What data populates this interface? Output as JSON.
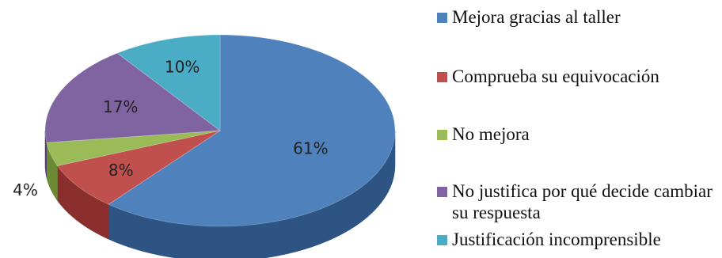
{
  "chart_data": {
    "type": "pie",
    "title": "",
    "three_d": true,
    "start_angle_deg": 90,
    "direction": "clockwise",
    "legend_position": "right",
    "slices": [
      {
        "label": "Mejora gracias al taller",
        "value": 61,
        "data_label": "61%",
        "color": "#4F81BD",
        "side_color": "#2D5483"
      },
      {
        "label": "Comprueba su equivocación",
        "value": 8,
        "data_label": "8%",
        "color": "#C0504D",
        "side_color": "#8A2F2D"
      },
      {
        "label": "No mejora",
        "value": 4,
        "data_label": "4%",
        "color": "#9BBB59",
        "side_color": "#6C8A33"
      },
      {
        "label": "No justifica por qué decide cambiar su respuesta",
        "value": 17,
        "data_label": "17%",
        "color": "#8064A2",
        "side_color": "#573F75"
      },
      {
        "label": "Justificación incomprensible",
        "value": 10,
        "data_label": "10%",
        "color": "#4BACC6",
        "side_color": "#2A7C92"
      }
    ]
  },
  "legend": {
    "items": [
      {
        "text": "Mejora gracias al taller",
        "color": "#4F81BD"
      },
      {
        "text": "Comprueba su equivocación",
        "color": "#C0504D"
      },
      {
        "text": "No mejora",
        "color": "#9BBB59"
      },
      {
        "text": "No justifica por qué decide cambiar su respuesta",
        "color": "#8064A2"
      },
      {
        "text": "Justificación incomprensible",
        "color": "#4BACC6"
      }
    ]
  }
}
